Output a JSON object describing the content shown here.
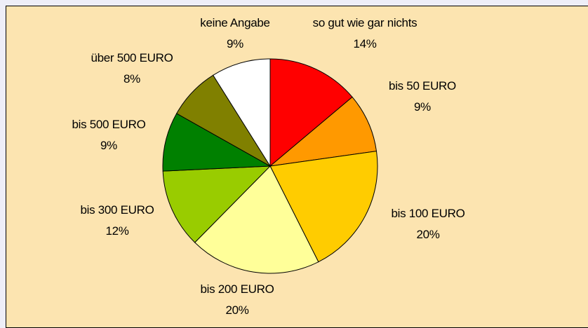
{
  "chart_data": {
    "type": "pie",
    "categories": [
      "so gut wie gar nichts",
      "bis 50 EURO",
      "bis 100 EURO",
      "bis 200 EURO",
      "bis 300 EURO",
      "bis 500 EURO",
      "über 500 EURO",
      "keine Angabe"
    ],
    "values": [
      14,
      9,
      20,
      20,
      12,
      9,
      8,
      9
    ],
    "value_labels": [
      "14%",
      "9%",
      "20%",
      "20%",
      "12%",
      "9%",
      "8%",
      "9%"
    ],
    "colors": [
      "#ff0000",
      "#ff9900",
      "#ffcc00",
      "#ffff99",
      "#99cc00",
      "#008000",
      "#808000",
      "#ffffff"
    ]
  }
}
